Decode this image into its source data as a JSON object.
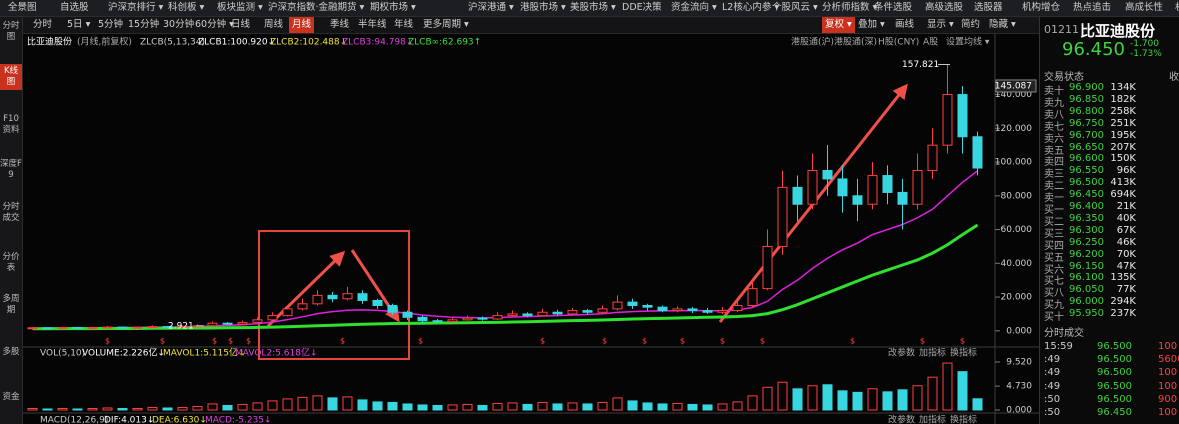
{
  "toolbar": {
    "menu": [
      "全景图",
      "自选股",
      "沪深京排行 ▾",
      "科创板 ▾",
      "板块监测 ▾",
      "沪深京指数·金融期货 ▾",
      "期权市场 ▾",
      "沪深港通 ▾",
      "港股市场 ▾",
      "美股市场 ▾",
      "DDE决策",
      "资金流向 ▾",
      "L2核心内参 ▾",
      "个股风云 ▾",
      "分析师指数 ▾",
      "条件选股",
      "高级选股",
      "选股器",
      "机构增仓",
      "热点追击",
      "高成长性",
      "机"
    ],
    "periods": [
      "分时",
      "5日 ▾",
      "5分钟",
      "15分钟",
      "30分钟",
      "60分钟 ▾",
      "日线",
      "周线",
      "月线",
      "季线",
      "半年线",
      "年线",
      "更多周期 ▾"
    ],
    "tools": [
      "复权 ▾",
      "叠加 ▾",
      "画线",
      "显示 ▾",
      "简约",
      "隐藏 ▾"
    ]
  },
  "sidebar": [
    "分时图",
    "K线图",
    "F10资料",
    "深度F9",
    "分时成交",
    "分价表",
    "多周期",
    "多股",
    "资金"
  ],
  "kline": {
    "header": [
      "比亚迪股份",
      "(月线,前复权)",
      "ZLCB(5,13,34)",
      "ZLCB1:100.920↓",
      "ZLCB2:102.488↓",
      "ZLCB3:94.798↓",
      "ZLCB∞:62.693↑"
    ],
    "header_right": [
      "港股通(沪)",
      "港股通(深)",
      "H股(CNY)",
      "A股",
      "设置均线 ▾"
    ],
    "ylim": [
      -9,
      174.7
    ],
    "yticks": [
      {
        "value": 140,
        "label": "140.000"
      },
      {
        "value": 120,
        "label": "120.000"
      },
      {
        "value": 100,
        "label": "100.000"
      },
      {
        "value": 80,
        "label": "80.000"
      },
      {
        "value": 60,
        "label": "60.000"
      },
      {
        "value": 40,
        "label": "40.000"
      },
      {
        "value": 20,
        "label": "20.000"
      },
      {
        "value": 0,
        "label": "0.000"
      }
    ],
    "axis_marker": {
      "value": 145.087,
      "label": "145.087"
    },
    "annotations": [
      {
        "value": 157.821,
        "label": "157.821"
      },
      {
        "value": 2.921,
        "label": "2.921"
      }
    ],
    "dividend_mark": "$",
    "up_color": "#ff4040",
    "down_color": "#37d6e0",
    "candles": [
      [
        1.5,
        1.8,
        2.2,
        1.2
      ],
      [
        1.8,
        1.6,
        2.0,
        1.3
      ],
      [
        1.6,
        2.0,
        2.4,
        1.4
      ],
      [
        2.0,
        1.7,
        2.2,
        1.4
      ],
      [
        1.7,
        1.9,
        2.3,
        1.5
      ],
      [
        1.9,
        2.2,
        2.9,
        1.7
      ],
      [
        2.2,
        1.8,
        2.5,
        1.6
      ],
      [
        1.8,
        2.1,
        2.6,
        1.6
      ],
      [
        2.1,
        2.5,
        3.2,
        1.9
      ],
      [
        2.5,
        2.2,
        2.9,
        2.0
      ],
      [
        2.2,
        2.6,
        3.1,
        2.0
      ],
      [
        2.6,
        3.0,
        3.8,
        2.4
      ],
      [
        3.0,
        4.5,
        5.5,
        2.8
      ],
      [
        4.5,
        4.0,
        5.2,
        3.6
      ],
      [
        4.0,
        5.0,
        6.0,
        3.8
      ],
      [
        5.0,
        6.5,
        8.0,
        4.6
      ],
      [
        6.5,
        9.0,
        11,
        6.0
      ],
      [
        9.0,
        13,
        15,
        8.5
      ],
      [
        13,
        16,
        19,
        12
      ],
      [
        16,
        21,
        24,
        15
      ],
      [
        21,
        19,
        23,
        17
      ],
      [
        19,
        22,
        26,
        18
      ],
      [
        22,
        18,
        24,
        16
      ],
      [
        18,
        15,
        19,
        13
      ],
      [
        15,
        11,
        16,
        9.5
      ],
      [
        11,
        8,
        12,
        6.5
      ],
      [
        8,
        6,
        9,
        4.5
      ],
      [
        6,
        5.5,
        7,
        4.5
      ],
      [
        5.5,
        6.5,
        7.5,
        5
      ],
      [
        6.5,
        7.5,
        9,
        6
      ],
      [
        7.5,
        7,
        8.5,
        6
      ],
      [
        7,
        9,
        11,
        6.5
      ],
      [
        9,
        10,
        12,
        8.5
      ],
      [
        10,
        9,
        11,
        8
      ],
      [
        9,
        11,
        13,
        8.5
      ],
      [
        11,
        10,
        12.5,
        9
      ],
      [
        10,
        12,
        13.5,
        9.5
      ],
      [
        12,
        11,
        13,
        9.5
      ],
      [
        11,
        13,
        15,
        10
      ],
      [
        13,
        17,
        21,
        12
      ],
      [
        17,
        15,
        19,
        13
      ],
      [
        15,
        14,
        16,
        12
      ],
      [
        14,
        12,
        15,
        11
      ],
      [
        12,
        13,
        14.5,
        11
      ],
      [
        13,
        12,
        14,
        10.5
      ],
      [
        12,
        11,
        13.5,
        10
      ],
      [
        11,
        12,
        14,
        10
      ],
      [
        12,
        15,
        17,
        11
      ],
      [
        15,
        25,
        30,
        14
      ],
      [
        25,
        50,
        60,
        24
      ],
      [
        50,
        85,
        95,
        45
      ],
      [
        85,
        75,
        92,
        65
      ],
      [
        75,
        95,
        105,
        72
      ],
      [
        95,
        90,
        110,
        80
      ],
      [
        90,
        80,
        98,
        70
      ],
      [
        80,
        75,
        90,
        65
      ],
      [
        75,
        92,
        100,
        72
      ],
      [
        92,
        82,
        98,
        75
      ],
      [
        82,
        75,
        90,
        60
      ],
      [
        75,
        95,
        105,
        72
      ],
      [
        95,
        110,
        120,
        90
      ],
      [
        110,
        140,
        157.821,
        105
      ],
      [
        140,
        115,
        145,
        105
      ],
      [
        115,
        96.45,
        118,
        92
      ]
    ],
    "lines": [
      {
        "color": "#e020e0",
        "values": [
          1.6,
          1.7,
          1.7,
          1.8,
          1.8,
          1.9,
          1.9,
          2.0,
          2.1,
          2.2,
          2.3,
          2.5,
          2.9,
          3.2,
          3.6,
          4.2,
          5.2,
          6.6,
          8.3,
          10.2,
          11.4,
          12.2,
          12.4,
          12.1,
          11.4,
          10.4,
          9.4,
          8.6,
          8.0,
          7.8,
          7.7,
          7.9,
          8.2,
          8.4,
          8.8,
          9.0,
          9.4,
          9.7,
          10.1,
          10.9,
          11.4,
          11.7,
          11.8,
          11.9,
          12.0,
          11.9,
          11.9,
          12.3,
          13.8,
          17.5,
          24.5,
          30,
          37,
          43,
          48,
          52,
          57,
          60,
          63,
          67,
          72,
          80,
          88,
          94.798
        ]
      },
      {
        "color": "#2fe02f",
        "values": [
          1.2,
          1.2,
          1.3,
          1.3,
          1.3,
          1.4,
          1.4,
          1.4,
          1.5,
          1.5,
          1.6,
          1.6,
          1.7,
          1.8,
          1.9,
          2.0,
          2.2,
          2.4,
          2.7,
          3.0,
          3.3,
          3.6,
          3.9,
          4.1,
          4.3,
          4.4,
          4.5,
          4.6,
          4.7,
          4.8,
          4.9,
          5.0,
          5.2,
          5.4,
          5.6,
          5.8,
          6.0,
          6.2,
          6.4,
          6.7,
          7.0,
          7.2,
          7.4,
          7.6,
          7.8,
          8.0,
          8.2,
          8.5,
          9.0,
          10.2,
          12.5,
          15.5,
          19,
          22.5,
          26,
          29.5,
          33,
          36,
          39,
          42,
          46,
          51,
          57,
          62.693
        ]
      }
    ]
  },
  "volume": {
    "header": [
      "VOL(5,10)",
      "VOLUME:2.226亿↓",
      "MAVOL1:5.115亿↓",
      "MAVOL2:5.618亿↓"
    ],
    "header_right": [
      "改参数",
      "加指标",
      "换指标"
    ],
    "ylim": [
      0,
      10.7
    ],
    "yticks": [
      {
        "value": 9.52,
        "label": "9.520"
      },
      {
        "value": 4.73,
        "label": "4.730"
      },
      {
        "value": 0,
        "label": "0.000"
      }
    ],
    "values": [
      0.3,
      0.2,
      0.3,
      0.2,
      0.3,
      0.4,
      0.3,
      0.3,
      0.5,
      0.4,
      0.5,
      0.7,
      1.2,
      0.9,
      1.1,
      1.4,
      1.8,
      2.2,
      2.5,
      2.8,
      2.4,
      2.6,
      2.0,
      1.6,
      1.5,
      1.2,
      1.0,
      0.9,
      1.0,
      1.1,
      0.9,
      1.3,
      1.4,
      1.1,
      1.5,
      1.2,
      1.4,
      1.2,
      1.5,
      2.4,
      1.8,
      1.4,
      1.2,
      1.3,
      1.1,
      1.0,
      1.2,
      1.6,
      2.8,
      4.5,
      5.5,
      4.2,
      4.8,
      5.0,
      3.8,
      3.5,
      4.2,
      3.6,
      4.0,
      4.8,
      6.5,
      9.3,
      7.6,
      2.226
    ]
  },
  "macd": {
    "header": [
      "MACD(12,26,9)",
      "DIF:4.013↓",
      "DEA:6.630↓",
      "MACD:-5.235↓"
    ],
    "header_right": [
      "改参数",
      "加指标",
      "换指标"
    ]
  },
  "quote": {
    "code": "01211",
    "name": "比亚迪股份",
    "price": "96.450",
    "change": "-1.700",
    "change_pct": "-1.73%"
  },
  "order_book": {
    "title": "交易状态",
    "title_right": "收",
    "asks": [
      [
        "卖十",
        "96.900",
        "134K"
      ],
      [
        "卖九",
        "96.850",
        "182K"
      ],
      [
        "卖八",
        "96.800",
        "258K"
      ],
      [
        "卖七",
        "96.750",
        "251K"
      ],
      [
        "卖六",
        "96.700",
        "195K"
      ],
      [
        "卖五",
        "96.650",
        "207K"
      ],
      [
        "卖四",
        "96.600",
        "150K"
      ],
      [
        "卖三",
        "96.550",
        "96K"
      ],
      [
        "卖二",
        "96.500",
        "413K"
      ],
      [
        "卖一",
        "96.450",
        "694K"
      ]
    ],
    "bids": [
      [
        "买一",
        "96.400",
        "21K"
      ],
      [
        "买二",
        "96.350",
        "40K"
      ],
      [
        "买三",
        "96.300",
        "67K"
      ],
      [
        "买四",
        "96.250",
        "46K"
      ],
      [
        "买五",
        "96.200",
        "70K"
      ],
      [
        "买六",
        "96.150",
        "47K"
      ],
      [
        "买七",
        "96.100",
        "135K"
      ],
      [
        "买八",
        "96.050",
        "77K"
      ],
      [
        "买九",
        "96.000",
        "294K"
      ],
      [
        "买十",
        "95.950",
        "237K"
      ]
    ]
  },
  "trades": {
    "title": "分时成交",
    "rows": [
      [
        "15:59",
        "96.500",
        "100"
      ],
      [
        ":49",
        "96.500",
        "5600"
      ],
      [
        ":49",
        "96.500",
        "100"
      ],
      [
        ":49",
        "96.500",
        "100"
      ],
      [
        ":50",
        "96.500",
        "900"
      ],
      [
        ":50",
        "96.450",
        "100"
      ]
    ]
  }
}
